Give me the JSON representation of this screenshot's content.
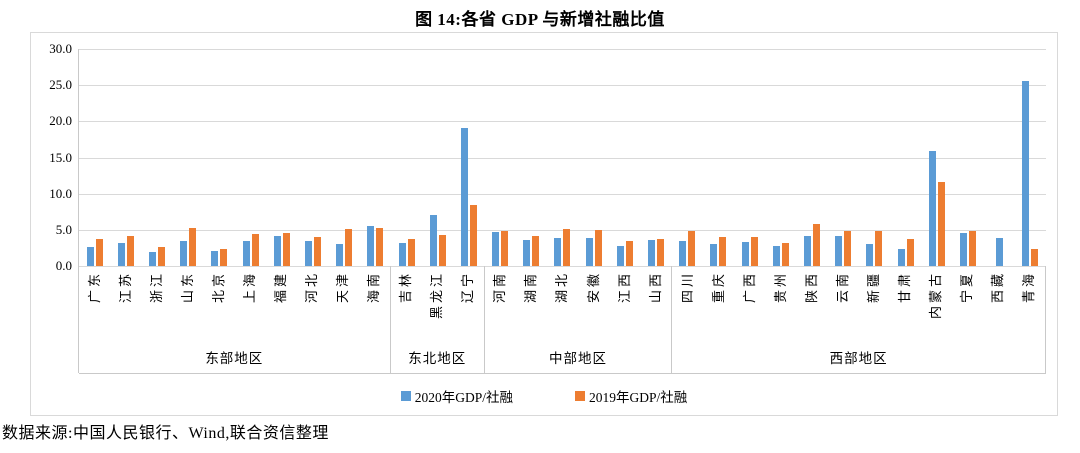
{
  "chart_data": {
    "type": "bar",
    "title": "图 14:各省 GDP 与新增社融比值",
    "xlabel": "",
    "ylabel": "",
    "ylim": [
      0,
      30
    ],
    "ytick_step": 5,
    "ytick_labels": [
      "0.0",
      "5.0",
      "10.0",
      "15.0",
      "20.0",
      "25.0",
      "30.0"
    ],
    "grid": true,
    "legend_position": "bottom-center",
    "series": [
      {
        "name": "2020年GDP/社融",
        "color": "#5B9BD5",
        "key": "v2020"
      },
      {
        "name": "2019年GDP/社融",
        "color": "#ED7D31",
        "key": "v2019"
      }
    ],
    "groups": [
      {
        "region": "东部地区",
        "provinces": [
          "广东",
          "江苏",
          "浙江",
          "山东",
          "北京",
          "上海",
          "福建",
          "河北",
          "天津",
          "海南"
        ],
        "v2020": [
          2.7,
          3.2,
          2.0,
          3.5,
          2.1,
          3.4,
          4.1,
          3.4,
          3.0,
          5.6
        ],
        "v2019": [
          3.7,
          4.1,
          2.7,
          5.2,
          2.4,
          4.4,
          4.6,
          4.0,
          5.1,
          5.3
        ]
      },
      {
        "region": "东北地区",
        "provinces": [
          "吉林",
          "黑龙江",
          "辽宁"
        ],
        "v2020": [
          3.2,
          7.1,
          19.1
        ],
        "v2019": [
          3.8,
          4.3,
          8.4
        ]
      },
      {
        "region": "中部地区",
        "provinces": [
          "河南",
          "湖南",
          "湖北",
          "安徽",
          "江西",
          "山西"
        ],
        "v2020": [
          4.7,
          3.6,
          3.9,
          3.9,
          2.8,
          3.6
        ],
        "v2019": [
          4.8,
          4.2,
          5.1,
          5.0,
          3.5,
          3.8
        ]
      },
      {
        "region": "西部地区",
        "provinces": [
          "四川",
          "重庆",
          "广西",
          "贵州",
          "陕西",
          "云南",
          "新疆",
          "甘肃",
          "内蒙古",
          "宁夏",
          "西藏",
          "青海"
        ],
        "v2020": [
          3.4,
          3.1,
          3.3,
          2.8,
          4.1,
          4.2,
          3.1,
          2.4,
          15.9,
          4.6,
          3.9,
          25.6
        ],
        "v2019": [
          4.9,
          4.0,
          4.0,
          3.2,
          5.8,
          4.9,
          4.8,
          3.7,
          11.6,
          4.9,
          null,
          2.4
        ]
      }
    ]
  },
  "source_note": "数据来源:中国人民银行、Wind,联合资信整理",
  "colors": {
    "series_2020": "#5B9BD5",
    "series_2019": "#ED7D31",
    "gridline": "#D9D9D9",
    "text": "#000000"
  }
}
